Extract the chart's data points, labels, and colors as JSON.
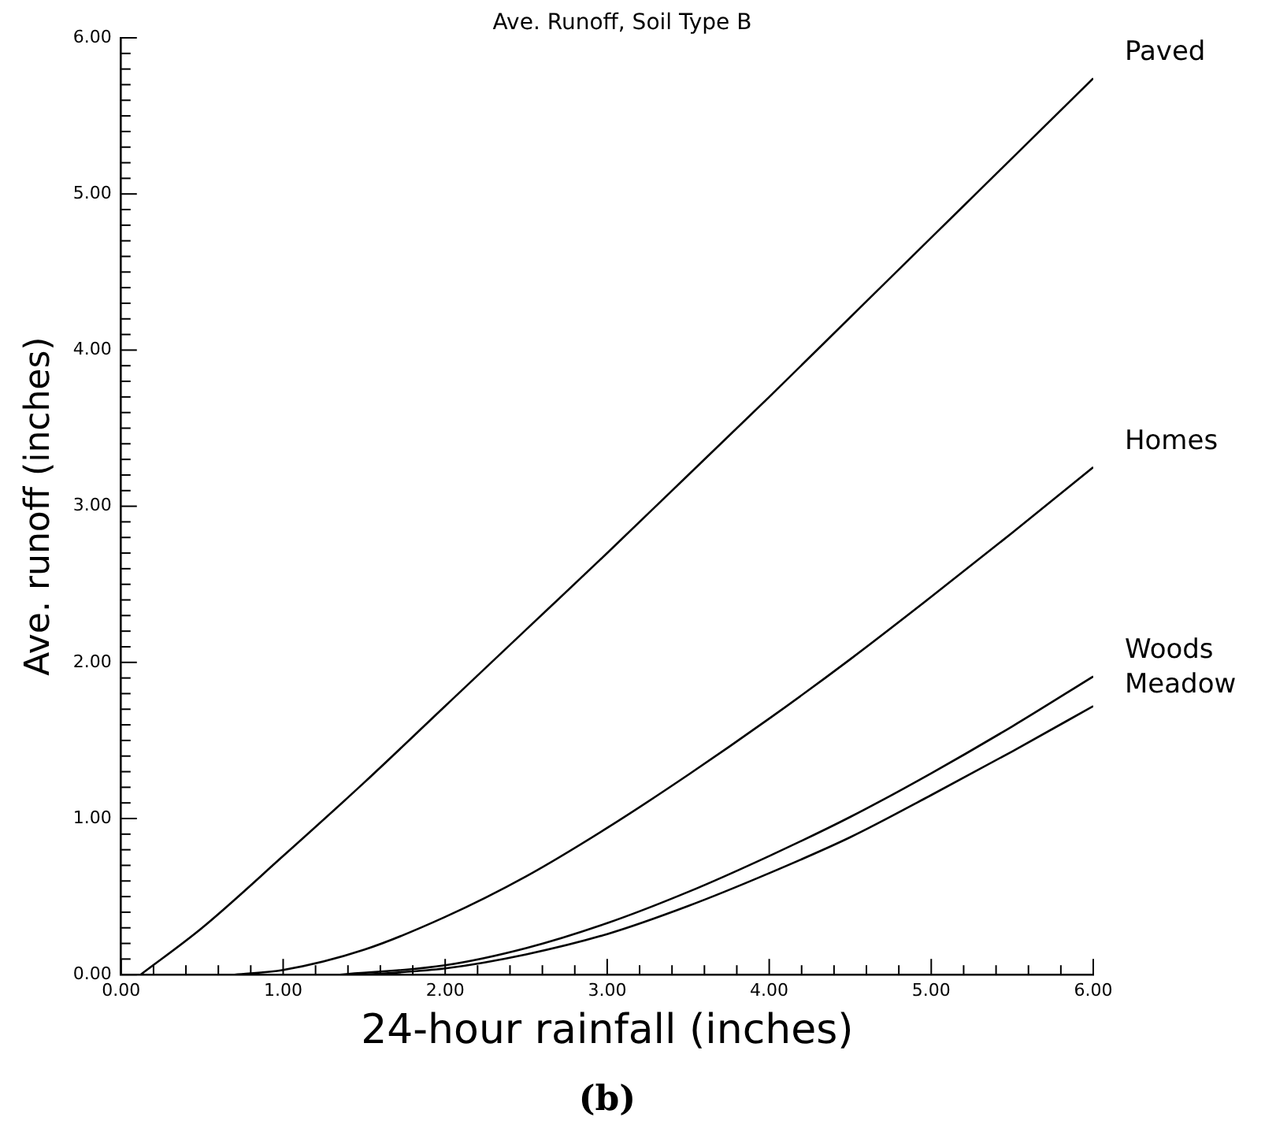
{
  "chart_data": {
    "type": "line",
    "title": "Ave. Runoff, Soil Type B",
    "xlabel": "24-hour rainfall (inches)",
    "ylabel": "Ave. runoff (inches)",
    "annotations": [
      "(b)"
    ],
    "series": [
      {
        "name": "Paved",
        "color": "#000000",
        "x": [
          0.12,
          0.5,
          1,
          1.5,
          2,
          2.5,
          3,
          3.5,
          4,
          4.5,
          5,
          5.5,
          6
        ],
        "values": [
          0,
          0.3,
          0.76,
          1.23,
          1.72,
          2.21,
          2.7,
          3.2,
          3.7,
          4.21,
          4.72,
          5.23,
          5.74
        ]
      },
      {
        "name": "Homes",
        "color": "#000000",
        "x": [
          0.7,
          1,
          1.5,
          2,
          2.5,
          3,
          3.5,
          4,
          4.5,
          5,
          5.5,
          6
        ],
        "values": [
          0,
          0.03,
          0.16,
          0.37,
          0.63,
          0.94,
          1.28,
          1.64,
          2.02,
          2.42,
          2.83,
          3.25
        ]
      },
      {
        "name": "Woods",
        "color": "#000000",
        "x": [
          1.35,
          2,
          2.5,
          3,
          3.5,
          4,
          4.5,
          5,
          5.5,
          6
        ],
        "values": [
          0,
          0.06,
          0.17,
          0.33,
          0.53,
          0.76,
          1.01,
          1.29,
          1.59,
          1.91
        ]
      },
      {
        "name": "Meadow",
        "color": "#000000",
        "x": [
          1.5,
          2,
          2.5,
          3,
          3.5,
          4,
          4.5,
          5,
          5.5,
          6
        ],
        "values": [
          0,
          0.04,
          0.13,
          0.26,
          0.44,
          0.65,
          0.88,
          1.15,
          1.43,
          1.72
        ]
      }
    ],
    "xlim": [
      0,
      6
    ],
    "ylim": [
      0,
      6
    ],
    "xticks": [
      {
        "value": 0,
        "label": "0.00"
      },
      {
        "value": 0.2,
        "label": null
      },
      {
        "value": 0.4,
        "label": null
      },
      {
        "value": 0.6,
        "label": null
      },
      {
        "value": 0.8,
        "label": null
      },
      {
        "value": 1,
        "label": "1.00"
      },
      {
        "value": 1.2,
        "label": null
      },
      {
        "value": 1.4,
        "label": null
      },
      {
        "value": 1.6,
        "label": null
      },
      {
        "value": 1.8,
        "label": null
      },
      {
        "value": 2,
        "label": "2.00"
      },
      {
        "value": 2.2,
        "label": null
      },
      {
        "value": 2.4,
        "label": null
      },
      {
        "value": 2.6,
        "label": null
      },
      {
        "value": 2.8,
        "label": null
      },
      {
        "value": 3,
        "label": "3.00"
      },
      {
        "value": 3.2,
        "label": null
      },
      {
        "value": 3.4,
        "label": null
      },
      {
        "value": 3.6,
        "label": null
      },
      {
        "value": 3.8,
        "label": null
      },
      {
        "value": 4,
        "label": "4.00"
      },
      {
        "value": 4.2,
        "label": null
      },
      {
        "value": 4.4,
        "label": null
      },
      {
        "value": 4.6,
        "label": null
      },
      {
        "value": 4.8,
        "label": null
      },
      {
        "value": 5,
        "label": "5.00"
      },
      {
        "value": 5.2,
        "label": null
      },
      {
        "value": 5.4,
        "label": null
      },
      {
        "value": 5.6,
        "label": null
      },
      {
        "value": 5.8,
        "label": null
      },
      {
        "value": 6,
        "label": "6.00"
      }
    ],
    "yticks": [
      {
        "value": 0,
        "label": "0.00"
      },
      {
        "value": 0.1,
        "label": null
      },
      {
        "value": 0.2,
        "label": null
      },
      {
        "value": 0.3,
        "label": null
      },
      {
        "value": 0.4,
        "label": null
      },
      {
        "value": 0.5,
        "label": null
      },
      {
        "value": 0.6,
        "label": null
      },
      {
        "value": 0.7,
        "label": null
      },
      {
        "value": 0.8,
        "label": null
      },
      {
        "value": 0.9,
        "label": null
      },
      {
        "value": 1,
        "label": "1.00"
      },
      {
        "value": 1.1,
        "label": null
      },
      {
        "value": 1.2,
        "label": null
      },
      {
        "value": 1.3,
        "label": null
      },
      {
        "value": 1.4,
        "label": null
      },
      {
        "value": 1.5,
        "label": null
      },
      {
        "value": 1.6,
        "label": null
      },
      {
        "value": 1.7,
        "label": null
      },
      {
        "value": 1.8,
        "label": null
      },
      {
        "value": 1.9,
        "label": null
      },
      {
        "value": 2,
        "label": "2.00"
      },
      {
        "value": 2.1,
        "label": null
      },
      {
        "value": 2.2,
        "label": null
      },
      {
        "value": 2.3,
        "label": null
      },
      {
        "value": 2.4,
        "label": null
      },
      {
        "value": 2.5,
        "label": null
      },
      {
        "value": 2.6,
        "label": null
      },
      {
        "value": 2.7,
        "label": null
      },
      {
        "value": 2.8,
        "label": null
      },
      {
        "value": 2.9,
        "label": null
      },
      {
        "value": 3,
        "label": "3.00"
      },
      {
        "value": 3.1,
        "label": null
      },
      {
        "value": 3.2,
        "label": null
      },
      {
        "value": 3.3,
        "label": null
      },
      {
        "value": 3.4,
        "label": null
      },
      {
        "value": 3.5,
        "label": null
      },
      {
        "value": 3.6,
        "label": null
      },
      {
        "value": 3.7,
        "label": null
      },
      {
        "value": 3.8,
        "label": null
      },
      {
        "value": 3.9,
        "label": null
      },
      {
        "value": 4,
        "label": "4.00"
      },
      {
        "value": 4.1,
        "label": null
      },
      {
        "value": 4.2,
        "label": null
      },
      {
        "value": 4.3,
        "label": null
      },
      {
        "value": 4.4,
        "label": null
      },
      {
        "value": 4.5,
        "label": null
      },
      {
        "value": 4.6,
        "label": null
      },
      {
        "value": 4.7,
        "label": null
      },
      {
        "value": 4.8,
        "label": null
      },
      {
        "value": 4.9,
        "label": null
      },
      {
        "value": 5,
        "label": "5.00"
      },
      {
        "value": 5.1,
        "label": null
      },
      {
        "value": 5.2,
        "label": null
      },
      {
        "value": 5.3,
        "label": null
      },
      {
        "value": 5.4,
        "label": null
      },
      {
        "value": 5.5,
        "label": null
      },
      {
        "value": 5.6,
        "label": null
      },
      {
        "value": 5.7,
        "label": null
      },
      {
        "value": 5.8,
        "label": null
      },
      {
        "value": 5.9,
        "label": null
      },
      {
        "value": 6,
        "label": "6.00"
      }
    ],
    "marker": "none",
    "line_style": "solid",
    "grid": false,
    "legend": false
  }
}
